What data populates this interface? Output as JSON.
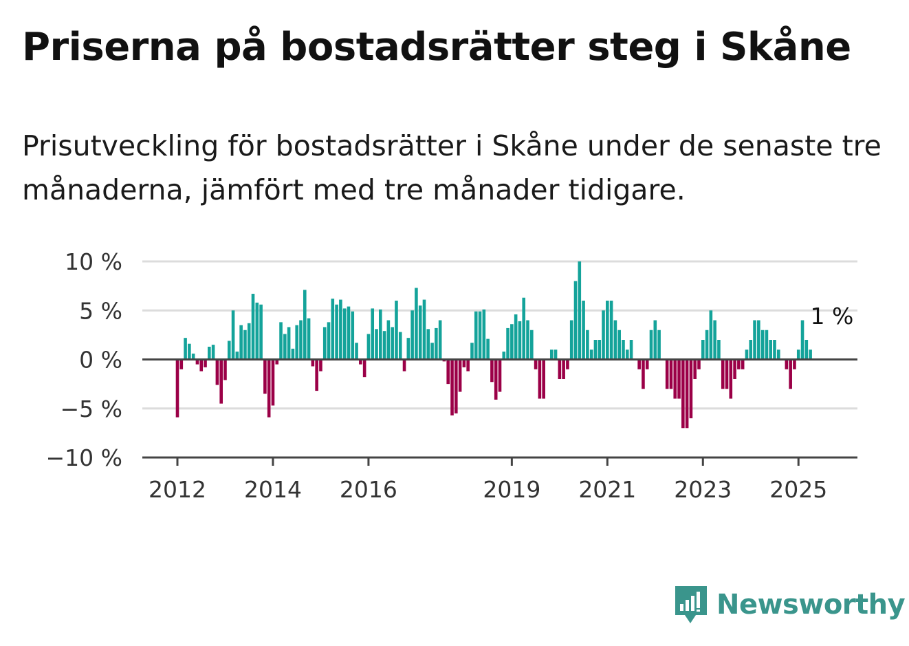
{
  "title": "Priserna på bostadsrätter steg i Skåne",
  "subtitle": "Prisutveckling för bostadsrätter i Skåne under de senaste tre månaderna, jämfört med tre månader tidigare.",
  "brand": {
    "name": "Newsworthy",
    "icon": "newsworthy-logo-icon",
    "color": "#3a958c"
  },
  "chart_data": {
    "type": "bar",
    "ylim": [
      -10,
      10
    ],
    "yticks": [
      10,
      5,
      0,
      -5,
      -10
    ],
    "ytick_labels": [
      "10 %",
      "5 %",
      "0 %",
      "−5 %",
      "−10 %"
    ],
    "xticks": [
      2012,
      2014,
      2016,
      2019,
      2021,
      2023,
      2025
    ],
    "xtick_labels": [
      "2012",
      "2014",
      "2016",
      "2019",
      "2021",
      "2023",
      "2025"
    ],
    "grid": true,
    "positive_color": "#14a39a",
    "negative_color": "#9b0047",
    "x_start": "2012-01",
    "x_step": "month",
    "annotation": {
      "label": "1 %",
      "index": 162
    },
    "values": [
      -5.9,
      -1,
      2.2,
      1.6,
      0.6,
      -0.5,
      -1.2,
      -0.8,
      1.3,
      1.5,
      -2.6,
      -4.5,
      -2.1,
      1.9,
      5,
      0.8,
      3.5,
      3,
      3.7,
      6.7,
      5.8,
      5.6,
      -3.5,
      -5.9,
      -4.7,
      -0.5,
      3.8,
      2.6,
      3.3,
      1.1,
      3.5,
      4,
      7.1,
      4.2,
      -0.7,
      -3.2,
      -1.2,
      3.3,
      3.8,
      6.2,
      5.6,
      6.1,
      5.2,
      5.4,
      4.9,
      1.7,
      -0.5,
      -1.8,
      2.6,
      5.2,
      3.1,
      5.1,
      2.9,
      4,
      3.3,
      6,
      2.8,
      -1.2,
      2.2,
      5,
      7.3,
      5.5,
      6.1,
      3.1,
      1.7,
      3.2,
      4,
      -0.2,
      -2.5,
      -5.7,
      -5.5,
      -3.3,
      -0.8,
      -1.2,
      1.7,
      4.9,
      4.9,
      5.1,
      2.1,
      -2.3,
      -4.1,
      -3.3,
      0.8,
      3.2,
      3.6,
      4.6,
      3.9,
      6.3,
      4,
      3,
      -1,
      -4,
      -4,
      0,
      1,
      1,
      -2,
      -2,
      -1,
      4,
      8,
      10,
      6,
      3,
      1,
      2,
      2,
      5,
      6,
      6,
      4,
      3,
      2,
      1,
      2,
      0,
      -1,
      -3,
      -1,
      3,
      4,
      3,
      0,
      -3,
      -3,
      -4,
      -4,
      -7,
      -7,
      -6,
      -2,
      -1,
      2,
      3,
      5,
      4,
      2,
      -3,
      -3,
      -4,
      -2,
      -1,
      -1,
      1,
      2,
      4,
      4,
      3,
      3,
      2,
      2,
      1,
      0,
      -1,
      -3,
      -1,
      1,
      4,
      2,
      1
    ]
  }
}
